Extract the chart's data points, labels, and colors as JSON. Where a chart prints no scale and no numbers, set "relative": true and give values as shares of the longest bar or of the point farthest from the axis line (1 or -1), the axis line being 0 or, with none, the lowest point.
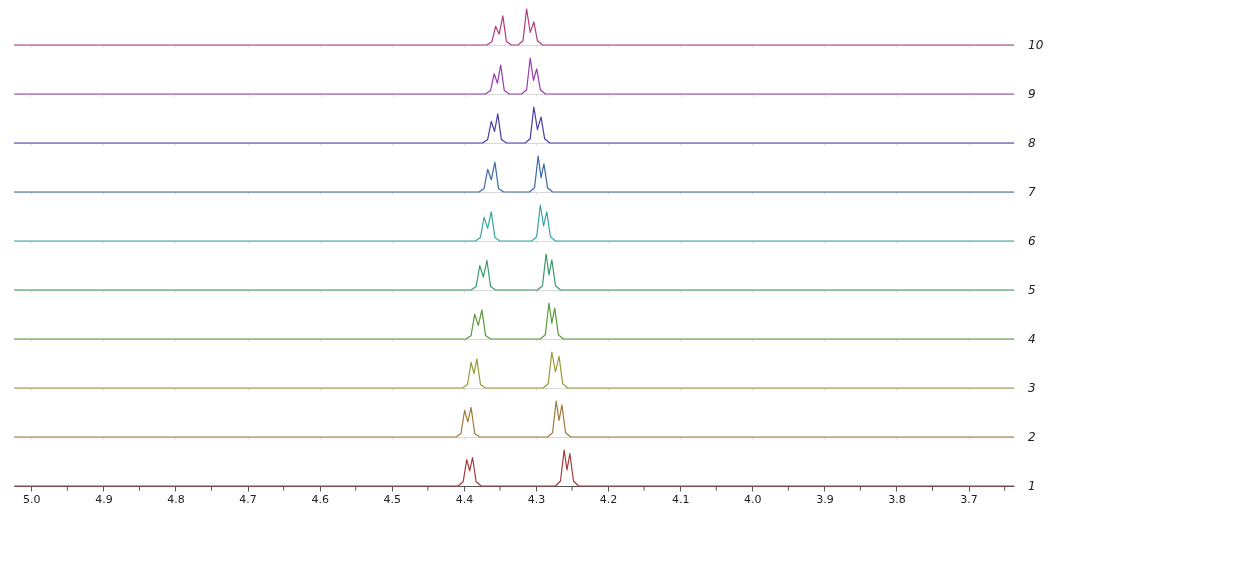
{
  "chart_data": [
    {
      "type": "line",
      "relative": true,
      "tick_labels": false,
      "xlim": [
        5.024,
        3.637
      ],
      "xticks": [
        5,
        4.9,
        4.8,
        4.7,
        4.6,
        4.5,
        4.4,
        4.3,
        4.2,
        4.1,
        4,
        3.9,
        3.8,
        3.7
      ],
      "x": [
        5.024,
        4.368,
        4.361,
        4.356,
        4.351,
        4.346,
        4.341,
        4.334,
        4.325,
        4.318,
        4.313,
        4.308,
        4.303,
        4.298,
        4.291,
        3.637
      ],
      "series": [
        {
          "name": "10",
          "color": "#b03c80",
          "values": [
            0,
            0,
            0.1,
            0.52,
            0.3,
            0.81,
            0.1,
            0,
            0,
            0.12,
            1,
            0.35,
            0.64,
            0.12,
            0,
            0
          ]
        }
      ]
    },
    {
      "type": "line",
      "relative": true,
      "tick_labels": false,
      "xlim": [
        5.024,
        3.637
      ],
      "xticks": [
        5,
        4.9,
        4.8,
        4.7,
        4.6,
        4.5,
        4.4,
        4.3,
        4.2,
        4.1,
        4,
        3.9,
        3.8,
        3.7
      ],
      "x": [
        5.024,
        4.37,
        4.363,
        4.358,
        4.3535,
        4.349,
        4.344,
        4.337,
        4.32,
        4.313,
        4.308,
        4.3035,
        4.299,
        4.294,
        4.287,
        3.637
      ],
      "series": [
        {
          "name": "9",
          "color": "#9a3cb0",
          "values": [
            0,
            0,
            0.1,
            0.56,
            0.3,
            0.8,
            0.1,
            0,
            0,
            0.12,
            1,
            0.38,
            0.7,
            0.12,
            0,
            0
          ]
        }
      ]
    },
    {
      "type": "line",
      "relative": true,
      "tick_labels": false,
      "xlim": [
        5.024,
        3.637
      ],
      "xticks": [
        5,
        4.9,
        4.8,
        4.7,
        4.6,
        4.5,
        4.4,
        4.3,
        4.2,
        4.1,
        4,
        3.9,
        3.8,
        3.7
      ],
      "x": [
        5.024,
        4.374,
        4.367,
        4.362,
        4.3575,
        4.353,
        4.348,
        4.341,
        4.315,
        4.308,
        4.303,
        4.298,
        4.293,
        4.288,
        4.281,
        3.637
      ],
      "series": [
        {
          "name": "8",
          "color": "#4a3ca8",
          "values": [
            0,
            0,
            0.1,
            0.6,
            0.32,
            0.81,
            0.1,
            0,
            0,
            0.12,
            1,
            0.38,
            0.72,
            0.12,
            0,
            0
          ]
        }
      ]
    },
    {
      "type": "line",
      "relative": true,
      "tick_labels": false,
      "xlim": [
        5.024,
        3.637
      ],
      "xticks": [
        5,
        4.9,
        4.8,
        4.7,
        4.6,
        4.5,
        4.4,
        4.3,
        4.2,
        4.1,
        4,
        3.9,
        3.8,
        3.7
      ],
      "x": [
        5.024,
        4.379,
        4.372,
        4.367,
        4.362,
        4.357,
        4.352,
        4.345,
        4.309,
        4.302,
        4.297,
        4.293,
        4.289,
        4.284,
        4.277,
        3.637
      ],
      "series": [
        {
          "name": "7",
          "color": "#3c6aa8",
          "values": [
            0,
            0,
            0.1,
            0.63,
            0.34,
            0.83,
            0.1,
            0,
            0,
            0.12,
            1,
            0.4,
            0.78,
            0.12,
            0,
            0
          ]
        }
      ]
    },
    {
      "type": "line",
      "relative": true,
      "tick_labels": false,
      "xlim": [
        5.024,
        3.637
      ],
      "xticks": [
        5,
        4.9,
        4.8,
        4.7,
        4.6,
        4.5,
        4.4,
        4.3,
        4.2,
        4.1,
        4,
        3.9,
        3.8,
        3.7
      ],
      "x": [
        5.024,
        4.384,
        4.377,
        4.372,
        4.367,
        4.362,
        4.357,
        4.35,
        4.306,
        4.299,
        4.294,
        4.2895,
        4.285,
        4.28,
        4.273,
        3.637
      ],
      "series": [
        {
          "name": "6",
          "color": "#3aa5a0",
          "values": [
            0,
            0,
            0.1,
            0.66,
            0.35,
            0.81,
            0.1,
            0,
            0,
            0.12,
            1,
            0.42,
            0.81,
            0.12,
            0,
            0
          ]
        }
      ]
    },
    {
      "type": "line",
      "relative": true,
      "tick_labels": false,
      "xlim": [
        5.024,
        3.637
      ],
      "xticks": [
        5,
        4.9,
        4.8,
        4.7,
        4.6,
        4.5,
        4.4,
        4.3,
        4.2,
        4.1,
        4,
        3.9,
        3.8,
        3.7
      ],
      "x": [
        5.024,
        4.39,
        4.383,
        4.378,
        4.373,
        4.368,
        4.363,
        4.356,
        4.298,
        4.291,
        4.286,
        4.282,
        4.278,
        4.273,
        4.266,
        3.637
      ],
      "series": [
        {
          "name": "5",
          "color": "#3c9a6a",
          "values": [
            0,
            0,
            0.1,
            0.68,
            0.36,
            0.82,
            0.1,
            0,
            0,
            0.12,
            1,
            0.42,
            0.84,
            0.12,
            0,
            0
          ]
        }
      ]
    },
    {
      "type": "line",
      "relative": true,
      "tick_labels": false,
      "xlim": [
        5.024,
        3.637
      ],
      "xticks": [
        5,
        4.9,
        4.8,
        4.7,
        4.6,
        4.5,
        4.4,
        4.3,
        4.2,
        4.1,
        4,
        3.9,
        3.8,
        3.7
      ],
      "x": [
        5.024,
        4.397,
        4.39,
        4.385,
        4.38,
        4.375,
        4.37,
        4.363,
        4.294,
        4.287,
        4.282,
        4.278,
        4.274,
        4.269,
        4.262,
        3.637
      ],
      "series": [
        {
          "name": "4",
          "color": "#5a9a3c",
          "values": [
            0,
            0,
            0.1,
            0.69,
            0.38,
            0.81,
            0.1,
            0,
            0,
            0.12,
            1,
            0.44,
            0.86,
            0.12,
            0,
            0
          ]
        }
      ]
    },
    {
      "type": "line",
      "relative": true,
      "tick_labels": false,
      "xlim": [
        5.024,
        3.637
      ],
      "xticks": [
        5,
        4.9,
        4.8,
        4.7,
        4.6,
        4.5,
        4.4,
        4.3,
        4.2,
        4.1,
        4,
        3.9,
        3.8,
        3.7
      ],
      "x": [
        5.024,
        4.402,
        4.395,
        4.39,
        4.386,
        4.382,
        4.377,
        4.37,
        4.29,
        4.283,
        4.278,
        4.273,
        4.268,
        4.263,
        4.256,
        3.637
      ],
      "series": [
        {
          "name": "3",
          "color": "#9a9a3c",
          "values": [
            0,
            0,
            0.1,
            0.71,
            0.4,
            0.81,
            0.1,
            0,
            0,
            0.12,
            1,
            0.45,
            0.88,
            0.12,
            0,
            0
          ]
        }
      ]
    },
    {
      "type": "line",
      "relative": true,
      "tick_labels": false,
      "xlim": [
        5.024,
        3.637
      ],
      "xticks": [
        5,
        4.9,
        4.8,
        4.7,
        4.6,
        4.5,
        4.4,
        4.3,
        4.2,
        4.1,
        4,
        3.9,
        3.8,
        3.7
      ],
      "x": [
        5.024,
        4.411,
        4.404,
        4.399,
        4.3945,
        4.39,
        4.385,
        4.378,
        4.284,
        4.277,
        4.272,
        4.268,
        4.264,
        4.259,
        4.252,
        3.637
      ],
      "series": [
        {
          "name": "2",
          "color": "#a07a3c",
          "values": [
            0,
            0,
            0.1,
            0.74,
            0.42,
            0.82,
            0.1,
            0,
            0,
            0.12,
            1,
            0.46,
            0.89,
            0.12,
            0,
            0
          ]
        }
      ]
    },
    {
      "type": "line",
      "relative": true,
      "tick_labels": "x",
      "xlim": [
        5.024,
        3.637
      ],
      "xticks": [
        {
          "value": 5,
          "label": "5.0"
        },
        {
          "value": 4.95,
          "label": null
        },
        4.9,
        {
          "value": 4.85,
          "label": null
        },
        4.8,
        {
          "value": 4.75,
          "label": null
        },
        4.7,
        {
          "value": 4.65,
          "label": null
        },
        4.6,
        {
          "value": 4.55,
          "label": null
        },
        4.5,
        {
          "value": 4.45,
          "label": null
        },
        4.4,
        {
          "value": 4.35,
          "label": null
        },
        4.3,
        {
          "value": 4.25,
          "label": null
        },
        4.2,
        {
          "value": 4.15,
          "label": null
        },
        4.1,
        {
          "value": 4.05,
          "label": null
        },
        {
          "value": 4,
          "label": "4.0"
        },
        {
          "value": 3.95,
          "label": null
        },
        3.9,
        {
          "value": 3.85,
          "label": null
        },
        3.8,
        {
          "value": 3.75,
          "label": null
        },
        3.7,
        {
          "value": 3.65,
          "label": null
        }
      ],
      "x": [
        5.024,
        4.408,
        4.401,
        4.396,
        4.392,
        4.388,
        4.383,
        4.376,
        4.273,
        4.266,
        4.261,
        4.257,
        4.253,
        4.248,
        4.241,
        3.637
      ],
      "series": [
        {
          "name": "1",
          "color": "#a83c3c",
          "values": [
            0,
            0,
            0.12,
            0.73,
            0.42,
            0.79,
            0.12,
            0,
            0,
            0.14,
            1,
            0.45,
            0.9,
            0.14,
            0,
            0
          ]
        }
      ]
    }
  ]
}
